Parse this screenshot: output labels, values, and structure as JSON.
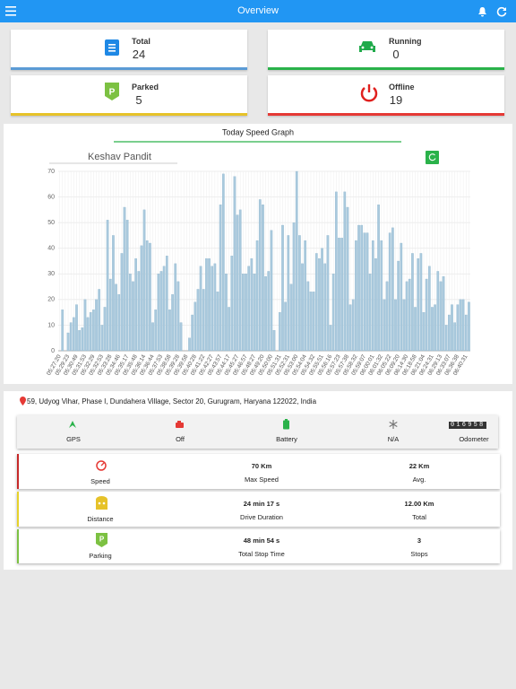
{
  "header": {
    "title": "Overview"
  },
  "cards": [
    {
      "label": "Total",
      "value": "24"
    },
    {
      "label": "Running",
      "value": "0"
    },
    {
      "label": "Parked",
      "value": "5"
    },
    {
      "label": "Offline",
      "value": "19"
    }
  ],
  "chart_data": {
    "type": "bar",
    "title": "Today Speed Graph",
    "subtitle": "Keshav Pandit",
    "color": "#a9c9dd",
    "grid": true,
    "ylim": [
      0,
      70
    ],
    "yticks": [
      0,
      10,
      20,
      30,
      40,
      50,
      60,
      70
    ],
    "categories": [
      "05:27:20",
      null,
      null,
      "05:29:23",
      null,
      null,
      "05:30:49",
      null,
      null,
      "05:31:53",
      null,
      null,
      "05:32:29",
      null,
      null,
      "05:32:53",
      null,
      null,
      "05:33:28",
      null,
      null,
      "05:34:46",
      null,
      null,
      "05:35:17",
      null,
      null,
      "05:35:48",
      null,
      null,
      "05:36:14",
      null,
      null,
      "05:36:44",
      null,
      null,
      "05:37:53",
      null,
      null,
      "05:38:58",
      null,
      null,
      "05:39:28",
      null,
      null,
      "05:39:58",
      null,
      null,
      "05:40:28",
      null,
      null,
      "05:41:22",
      null,
      null,
      "05:42:27",
      null,
      null,
      "05:43:57",
      null,
      null,
      "05:44:17",
      null,
      null,
      "05:45:27",
      null,
      null,
      "05:46:57",
      null,
      null,
      "05:48:27",
      null,
      null,
      "05:49:20",
      null,
      null,
      "05:50:00",
      null,
      null,
      "05:51:31",
      null,
      null,
      "05:52:31",
      null,
      null,
      "05:53:00",
      null,
      null,
      "05:54:04",
      null,
      null,
      "05:54:32",
      null,
      null,
      "05:55:51",
      null,
      null,
      "05:56:16",
      null,
      null,
      "05:57:23",
      null,
      null,
      "05:57:38",
      null,
      null,
      "05:58:32",
      null,
      null,
      "05:59:07",
      null,
      null,
      "06:00:01",
      null,
      null,
      "06:01:32",
      null,
      null,
      "06:05:22",
      null,
      null,
      "06:09:20",
      null,
      null,
      "06:14:30",
      null,
      null,
      "06:18:58",
      null,
      null,
      "06:21:04",
      null,
      null,
      "06:24:31",
      null,
      null,
      "06:29:13",
      null,
      null,
      "06:33:07",
      null,
      null,
      "06:36:38",
      null,
      null,
      "06:40:31",
      null
    ],
    "values": [
      0,
      16,
      0,
      7,
      11,
      13,
      18,
      8,
      9,
      20,
      13,
      15,
      16,
      20,
      24,
      10,
      17,
      51,
      28,
      45,
      26,
      22,
      38,
      56,
      51,
      30,
      27,
      36,
      31,
      41,
      55,
      43,
      42,
      11,
      16,
      30,
      31,
      33,
      37,
      16,
      22,
      34,
      27,
      11,
      0,
      0,
      5,
      14,
      19,
      24,
      33,
      24,
      36,
      36,
      33,
      34,
      23,
      57,
      69,
      30,
      17,
      37,
      68,
      53,
      55,
      30,
      30,
      33,
      36,
      30,
      43,
      59,
      57,
      29,
      31,
      47,
      8,
      0,
      15,
      49,
      19,
      45,
      26,
      50,
      70,
      45,
      34,
      43,
      27,
      23,
      23,
      38,
      36,
      40,
      34,
      45,
      10,
      30,
      62,
      44,
      44,
      62,
      56,
      18,
      20,
      43,
      49,
      49,
      46,
      46,
      30,
      43,
      36,
      57,
      43,
      20,
      27,
      46,
      48,
      20,
      35,
      42,
      20,
      27,
      28,
      38,
      17,
      36,
      38,
      15,
      28,
      33,
      17,
      18,
      31,
      27,
      29,
      10,
      14,
      18,
      11,
      18,
      20,
      20,
      14,
      19
    ]
  },
  "address": "59, Udyog Vihar, Phase I, Dundahera Village, Sector 20, Gurugram, Haryana 122022, India",
  "status": [
    {
      "label": "GPS"
    },
    {
      "label": "Off"
    },
    {
      "label": "Battery"
    },
    {
      "label": "N/A"
    },
    {
      "label": "Odometer",
      "display": "016958"
    }
  ],
  "stats": [
    {
      "label": "Speed",
      "items": [
        {
          "value": "70 Km",
          "label": "Max Speed"
        },
        {
          "value": "22 Km",
          "label": "Avg."
        }
      ]
    },
    {
      "label": "Distance",
      "items": [
        {
          "value": "24 min 17 s",
          "label": "Drive Duration"
        },
        {
          "value": "12.00 Km",
          "label": "Total"
        }
      ]
    },
    {
      "label": "Parking",
      "items": [
        {
          "value": "48 min 54 s",
          "label": "Total Stop Time"
        },
        {
          "value": "3",
          "label": "Stops"
        }
      ]
    }
  ]
}
